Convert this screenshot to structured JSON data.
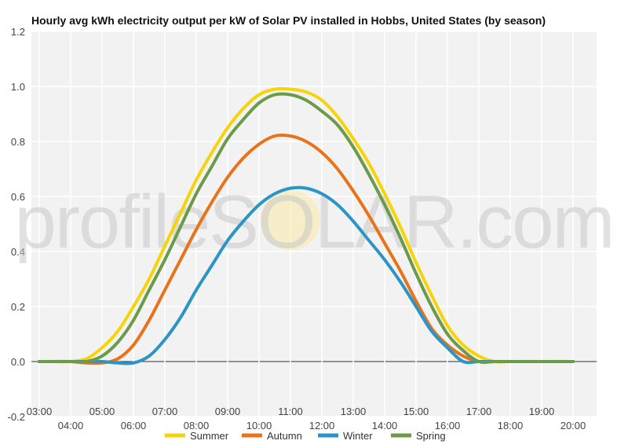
{
  "chart_data": {
    "type": "line",
    "title": "Hourly avg kWh electricity output per kW of Solar PV installed in Hobbs, United States (by season)",
    "xlabel": "",
    "ylabel": "",
    "ylim": [
      -0.2,
      1.2
    ],
    "yticks": [
      -0.2,
      0.0,
      0.2,
      0.4,
      0.6,
      0.8,
      1.0,
      1.2
    ],
    "ytick_labels": [
      "-0.2",
      "0.0",
      "0.2",
      "0.4",
      "0.6",
      "0.8",
      "1.0",
      "1.2"
    ],
    "x_hours": [
      3,
      4,
      5,
      6,
      7,
      8,
      9,
      10,
      11,
      12,
      13,
      14,
      15,
      16,
      17,
      18,
      19,
      20
    ],
    "xtick_labels": [
      "03:00",
      "04:00",
      "05:00",
      "06:00",
      "07:00",
      "08:00",
      "09:00",
      "10:00",
      "11:00",
      "12:00",
      "13:00",
      "14:00",
      "15:00",
      "16:00",
      "17:00",
      "18:00",
      "19:00",
      "20:00"
    ],
    "grid": true,
    "legend_position": "bottom",
    "watermark": "profileSOLAR.com",
    "series": [
      {
        "name": "Summer",
        "color": "#f5d40a",
        "x": [
          3,
          3.5,
          4,
          4.5,
          5,
          5.5,
          6,
          6.5,
          7,
          7.5,
          8,
          8.5,
          9,
          9.5,
          10,
          10.5,
          11,
          11.5,
          12,
          12.5,
          13,
          13.5,
          14,
          14.5,
          15,
          15.5,
          16,
          16.5,
          17,
          17.5,
          18,
          18.5,
          19,
          19.5,
          20
        ],
        "values": [
          0.0,
          0.0,
          0.0,
          0.01,
          0.05,
          0.11,
          0.2,
          0.3,
          0.42,
          0.54,
          0.66,
          0.76,
          0.85,
          0.92,
          0.97,
          0.99,
          0.99,
          0.98,
          0.95,
          0.89,
          0.81,
          0.72,
          0.61,
          0.49,
          0.36,
          0.24,
          0.13,
          0.06,
          0.02,
          0.0,
          0.0,
          0.0,
          0.0,
          0.0,
          0.0
        ]
      },
      {
        "name": "Autumn",
        "color": "#e8731a",
        "x": [
          3,
          3.5,
          4,
          4.5,
          5,
          5.5,
          6,
          6.5,
          7,
          7.5,
          8,
          8.5,
          9,
          9.5,
          10,
          10.5,
          11,
          11.5,
          12,
          12.5,
          13,
          13.5,
          14,
          14.5,
          15,
          15.5,
          16,
          16.5,
          17,
          17.5,
          18,
          18.5,
          19,
          19.5,
          20
        ],
        "values": [
          0.0,
          0.0,
          0.0,
          -0.005,
          -0.005,
          0.01,
          0.06,
          0.15,
          0.26,
          0.37,
          0.48,
          0.58,
          0.67,
          0.74,
          0.79,
          0.82,
          0.82,
          0.8,
          0.76,
          0.7,
          0.62,
          0.53,
          0.43,
          0.33,
          0.22,
          0.12,
          0.06,
          0.02,
          0.0,
          0.0,
          0.0,
          0.0,
          0.0,
          0.0,
          0.0
        ]
      },
      {
        "name": "Winter",
        "color": "#2b95c5",
        "x": [
          3,
          3.5,
          4,
          4.5,
          5,
          5.5,
          6,
          6.5,
          7,
          7.5,
          8,
          8.5,
          9,
          9.5,
          10,
          10.5,
          11,
          11.5,
          12,
          12.5,
          13,
          13.5,
          14,
          14.5,
          15,
          15.5,
          16,
          16.5,
          17,
          17.5,
          18,
          18.5,
          19,
          19.5,
          20
        ],
        "values": [
          0.0,
          0.0,
          0.0,
          0.0,
          0.0,
          -0.005,
          -0.005,
          0.02,
          0.08,
          0.16,
          0.26,
          0.35,
          0.44,
          0.51,
          0.57,
          0.61,
          0.63,
          0.63,
          0.61,
          0.57,
          0.51,
          0.44,
          0.37,
          0.29,
          0.2,
          0.11,
          0.05,
          0.0,
          0.0,
          0.0,
          0.0,
          0.0,
          0.0,
          0.0,
          0.0
        ]
      },
      {
        "name": "Spring",
        "color": "#6b9a4a",
        "x": [
          3,
          3.5,
          4,
          4.5,
          5,
          5.5,
          6,
          6.5,
          7,
          7.5,
          8,
          8.5,
          9,
          9.5,
          10,
          10.5,
          11,
          11.5,
          12,
          12.5,
          13,
          13.5,
          14,
          14.5,
          15,
          15.5,
          16,
          16.5,
          17,
          17.5,
          18,
          18.5,
          19,
          19.5,
          20
        ],
        "values": [
          0.0,
          0.0,
          0.0,
          0.0,
          0.02,
          0.07,
          0.15,
          0.26,
          0.37,
          0.49,
          0.61,
          0.71,
          0.81,
          0.88,
          0.94,
          0.97,
          0.97,
          0.95,
          0.91,
          0.86,
          0.78,
          0.68,
          0.57,
          0.45,
          0.32,
          0.2,
          0.1,
          0.04,
          0.0,
          0.0,
          0.0,
          0.0,
          0.0,
          0.0,
          0.0
        ]
      }
    ]
  }
}
